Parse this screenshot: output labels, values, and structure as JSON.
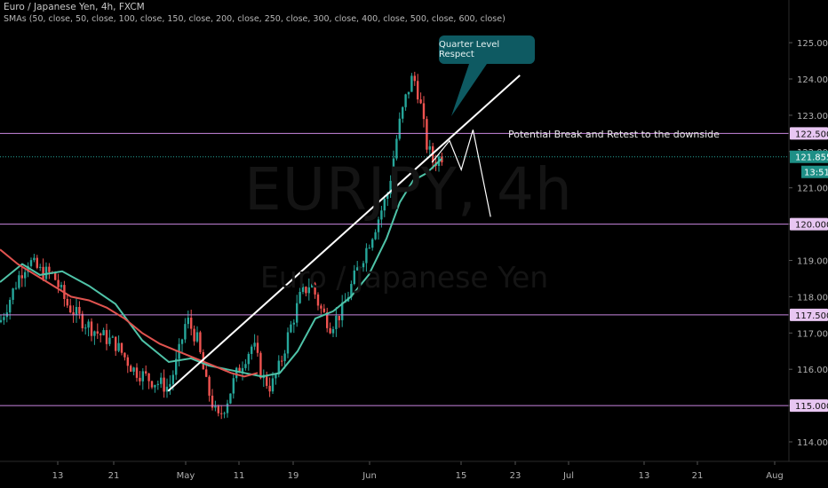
{
  "header": {
    "symbol_line": "Euro / Japanese Yen, 4h, FXCM",
    "indicator_line": "SMAs (50, close, 50, close, 100, close, 150, close, 200, close, 250, close, 300, close, 400, close, 500, close, 600, close)"
  },
  "watermark": {
    "ticker": "EURJPY, 4h",
    "name": "Euro / Japanese Yen"
  },
  "annotations": {
    "callout": "Quarter Level Respect",
    "projection_text": "Potential Break and Retest to the downside"
  },
  "price_badges": {
    "current_price": "121.855",
    "countdown": "13:51"
  },
  "colors": {
    "background": "#000000",
    "bull_candle": "#26a69a",
    "bear_candle": "#ef5350",
    "sma_fast": "#4fc3a8",
    "sma_slow": "#e0534f",
    "level_line": "#c987e0",
    "callout": "#0e5a62",
    "trendline": "#ffffff"
  },
  "chart_data": {
    "type": "candlestick",
    "title": "Euro / Japanese Yen, 4h, FXCM",
    "ylim": [
      113.5,
      125.3
    ],
    "y_ticks": [
      "114.000",
      "115.000",
      "116.000",
      "117.000",
      "118.000",
      "119.000",
      "120.000",
      "121.000",
      "122.000",
      "123.000",
      "124.000",
      "125.000"
    ],
    "x_ticks": [
      "13",
      "21",
      "May",
      "11",
      "19",
      "Jun",
      "15",
      "23",
      "Jul",
      "13",
      "21",
      "Aug"
    ],
    "levels": [
      {
        "value": 122.5,
        "label": "122.500"
      },
      {
        "value": 120.0,
        "label": "120.000"
      },
      {
        "value": 117.5,
        "label": "117.500"
      },
      {
        "value": 115.0,
        "label": "115.000"
      }
    ],
    "last_price": 121.855,
    "trendline": {
      "from": {
        "date": "Apr 28",
        "price": 115.4
      },
      "to": {
        "date": "Jun 27",
        "price": 124.1
      }
    },
    "projection": [
      {
        "date": "Jun 12",
        "price": 121.7
      },
      {
        "date": "Jun 15",
        "price": 122.3
      },
      {
        "date": "Jun 17",
        "price": 121.5
      },
      {
        "date": "Jun 19",
        "price": 122.6
      },
      {
        "date": "Jun 22",
        "price": 120.2
      }
    ],
    "series": [
      {
        "name": "SMA 50",
        "points": [
          [
            0,
            118.4
          ],
          [
            25,
            118.9
          ],
          [
            45,
            118.6
          ],
          [
            70,
            118.7
          ],
          [
            100,
            118.3
          ],
          [
            130,
            117.8
          ],
          [
            160,
            116.8
          ],
          [
            190,
            116.2
          ],
          [
            215,
            116.3
          ],
          [
            235,
            116.1
          ],
          [
            255,
            116.0
          ],
          [
            275,
            115.9
          ],
          [
            295,
            115.8
          ],
          [
            315,
            115.9
          ],
          [
            335,
            116.5
          ],
          [
            355,
            117.4
          ],
          [
            375,
            117.6
          ],
          [
            395,
            118.0
          ],
          [
            415,
            118.6
          ],
          [
            435,
            119.6
          ],
          [
            450,
            120.6
          ],
          [
            465,
            121.2
          ],
          [
            480,
            121.4
          ],
          [
            497,
            121.8
          ]
        ]
      },
      {
        "name": "SMA 100",
        "points": [
          [
            0,
            119.3
          ],
          [
            20,
            118.9
          ],
          [
            40,
            118.6
          ],
          [
            60,
            118.3
          ],
          [
            80,
            118.0
          ],
          [
            100,
            117.9
          ],
          [
            120,
            117.7
          ],
          [
            140,
            117.4
          ],
          [
            160,
            117.0
          ],
          [
            180,
            116.7
          ],
          [
            200,
            116.5
          ],
          [
            220,
            116.3
          ],
          [
            240,
            116.1
          ],
          [
            260,
            115.9
          ],
          [
            275,
            115.8
          ],
          [
            290,
            115.9
          ]
        ]
      }
    ],
    "candles": {
      "from": "Apr 8",
      "to": "Jun 12",
      "low": 114.4,
      "high": 124.4
    }
  }
}
